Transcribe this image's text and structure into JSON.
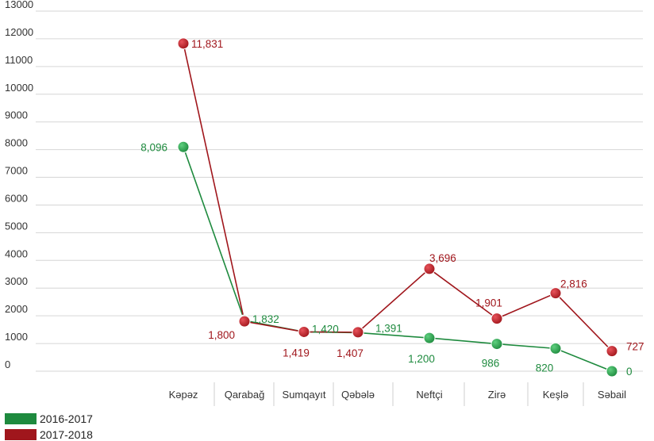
{
  "chart_data": {
    "type": "line",
    "categories": [
      "Kəpəz",
      "Qarabağ",
      "Sumqayıt",
      "Qəbələ",
      "Neftçi",
      "Zirə",
      "Keşlə",
      "Səbail"
    ],
    "ylim": [
      0,
      13000
    ],
    "yticks": [
      0,
      1000,
      2000,
      3000,
      4000,
      5000,
      6000,
      7000,
      8000,
      9000,
      10000,
      11000,
      12000,
      13000
    ],
    "grid": "horizontal",
    "legend_position": "bottom-left",
    "series": [
      {
        "name": "2016-2017",
        "color": "#1e8a3e",
        "values": [
          8096,
          1832,
          1420,
          1391,
          1200,
          986,
          820,
          0
        ],
        "labels": [
          "8,096",
          "1,832",
          "1,420",
          "1,391",
          "1,200",
          "986",
          "820",
          "0"
        ]
      },
      {
        "name": "2017-2018",
        "color": "#a0161c",
        "values": [
          11831,
          1800,
          1419,
          1407,
          3696,
          1901,
          2816,
          727
        ],
        "labels": [
          "11,831",
          "1,800",
          "1,419",
          "1,407",
          "3,696",
          "1,901",
          "2,816",
          "727"
        ]
      }
    ]
  }
}
